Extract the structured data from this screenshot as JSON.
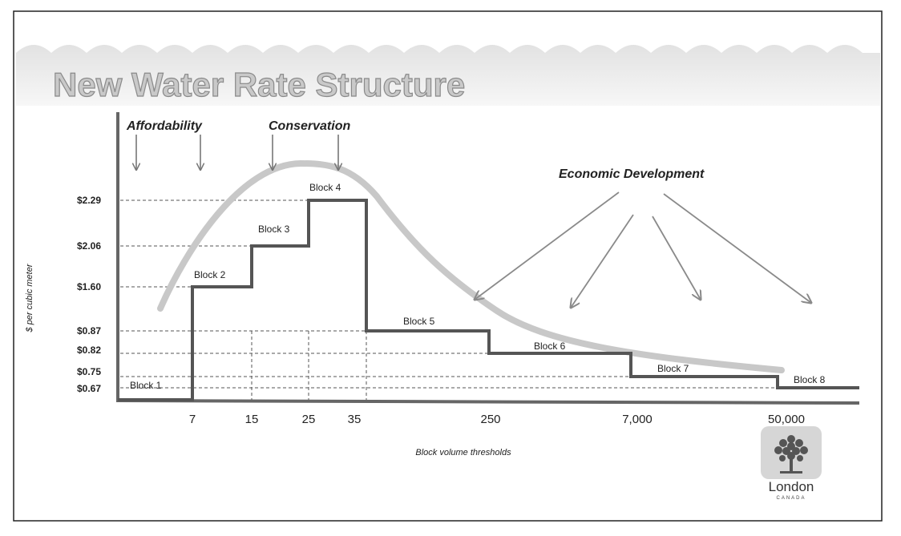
{
  "slide": {
    "title": "New Water Rate Structure",
    "logo_text": "London",
    "logo_subtext": "CANADA"
  },
  "chart_data": {
    "type": "line",
    "subtype": "step",
    "ylabel": "$ per cubic meter",
    "xlabel": "Block volume thresholds",
    "y_ticks": [
      "$2.29",
      "$2.06",
      "$1.60",
      "$0.87",
      "$0.82",
      "$0.75",
      "$0.67"
    ],
    "x_ticks": [
      "7",
      "15",
      "25",
      "35",
      "250",
      "7,000",
      "50,000"
    ],
    "blocks": [
      {
        "name": "Block 1",
        "rate": 0.67
      },
      {
        "name": "Block 2",
        "rate": 1.6
      },
      {
        "name": "Block 3",
        "rate": 2.06
      },
      {
        "name": "Block 4",
        "rate": 2.29
      },
      {
        "name": "Block 5",
        "rate": 0.87
      },
      {
        "name": "Block 6",
        "rate": 0.82
      },
      {
        "name": "Block 7",
        "rate": 0.75
      },
      {
        "name": "Block 8",
        "rate": 0.67
      }
    ],
    "annotations": {
      "affordability": "Affordability",
      "conservation": "Conservation",
      "economic_development": "Economic Development"
    },
    "colors": {
      "step_line": "#555555",
      "curve": "#c8c8c8",
      "arrows": "#8a8a8a"
    }
  }
}
